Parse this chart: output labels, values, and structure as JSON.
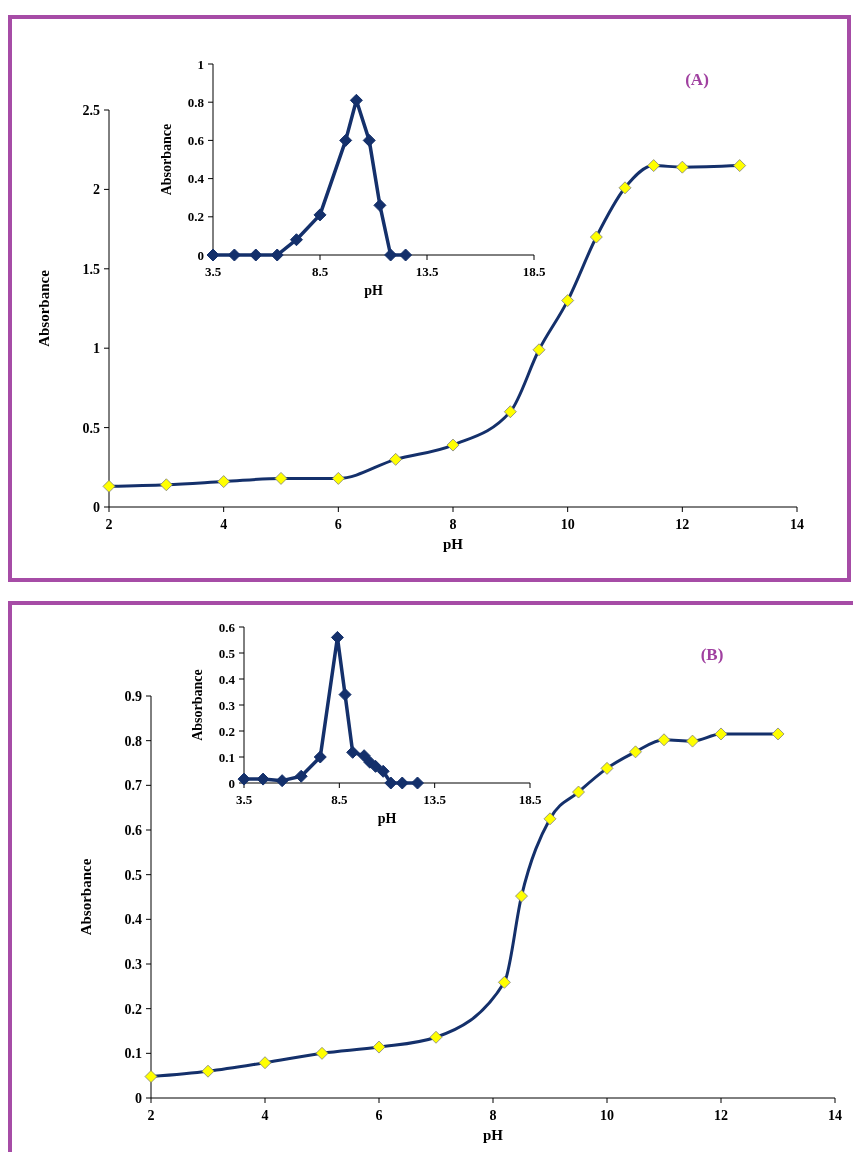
{
  "chart_data": [
    {
      "type": "line",
      "title": "(A)",
      "xlabel": "pH",
      "ylabel": "Absorbance",
      "xlim": [
        2,
        14
      ],
      "xticks": [
        2,
        4,
        6,
        8,
        10,
        12,
        14
      ],
      "ylim": [
        0,
        2.5
      ],
      "yticks": [
        0,
        0.5,
        1,
        1.5,
        2,
        2.5
      ],
      "marker": "diamond",
      "line_style": "solid",
      "series": [
        {
          "color": "#14306b",
          "x": [
            2,
            3,
            4,
            5,
            6,
            7,
            8,
            9,
            9.5,
            10,
            10.5,
            11,
            11.5,
            12,
            13
          ],
          "values": [
            0.13,
            0.14,
            0.16,
            0.18,
            0.18,
            0.3,
            0.39,
            0.6,
            0.99,
            1.3,
            1.7,
            2.01,
            2.15,
            2.14,
            2.15
          ]
        }
      ]
    },
    {
      "type": "line",
      "xlabel": "pH",
      "ylabel": "Absorbance",
      "xlim": [
        3.5,
        18.5
      ],
      "xticks": [
        {
          "value": 3.5,
          "label": "3.5"
        },
        {
          "value": 8.5,
          "label": "8.5"
        },
        {
          "value": 13.5,
          "label": "13.5"
        },
        {
          "value": 18.5,
          "label": "18.5"
        }
      ],
      "ylim": [
        0,
        1
      ],
      "yticks": [
        0,
        0.2,
        0.4,
        0.6,
        0.8,
        1
      ],
      "marker": "diamond",
      "line_style": "solid",
      "series": [
        {
          "color": "#14306b",
          "x": [
            3.5,
            4.5,
            5.5,
            6.5,
            7.4,
            8.5,
            9.7,
            10.2,
            10.8,
            11.3,
            11.8,
            12.5
          ],
          "values": [
            0,
            0,
            0,
            0,
            0.08,
            0.21,
            0.6,
            0.81,
            0.6,
            0.26,
            0,
            0
          ]
        }
      ]
    },
    {
      "type": "line",
      "title": "(B)",
      "xlabel": "pH",
      "ylabel": "Absorbance",
      "xlim": [
        2,
        14
      ],
      "xticks": [
        2,
        4,
        6,
        8,
        10,
        12,
        14
      ],
      "ylim": [
        0,
        0.9
      ],
      "yticks": [
        0,
        0.1,
        0.2,
        0.3,
        0.4,
        0.5,
        0.6,
        0.7,
        0.8,
        0.9
      ],
      "marker": "diamond",
      "line_style": "solid",
      "series": [
        {
          "color": "#14306b",
          "x": [
            2,
            3,
            4,
            5,
            6,
            7,
            8.2,
            8.5,
            9,
            9.5,
            10,
            10.5,
            11,
            11.5,
            12,
            13
          ],
          "values": [
            0.048,
            0.06,
            0.079,
            0.1,
            0.114,
            0.136,
            0.259,
            0.452,
            0.625,
            0.685,
            0.738,
            0.775,
            0.802,
            0.799,
            0.815,
            0.815
          ]
        }
      ]
    },
    {
      "type": "line",
      "xlabel": "pH",
      "ylabel": "Absorbance",
      "xlim": [
        3.5,
        18.5
      ],
      "xticks": [
        {
          "value": 3.5,
          "label": "3.5"
        },
        {
          "value": 8.5,
          "label": "8.5"
        },
        {
          "value": 13.5,
          "label": "13.5"
        },
        {
          "value": 18.5,
          "label": "18.5"
        }
      ],
      "ylim": [
        0,
        0.6
      ],
      "yticks": [
        0,
        0.1,
        0.2,
        0.3,
        0.4,
        0.5,
        0.6
      ],
      "marker": "diamond",
      "line_style": "solid",
      "series": [
        {
          "color": "#14306b",
          "x": [
            3.5,
            4.5,
            5.5,
            6.5,
            7.5,
            8.4,
            8.8,
            9.2,
            9.8,
            10.1,
            10.4,
            10.8,
            11.2,
            11.8,
            12.6
          ],
          "values": [
            0.015,
            0.015,
            0.009,
            0.026,
            0.1,
            0.56,
            0.34,
            0.118,
            0.105,
            0.08,
            0.064,
            0.045,
            0,
            0,
            0
          ]
        }
      ]
    }
  ]
}
